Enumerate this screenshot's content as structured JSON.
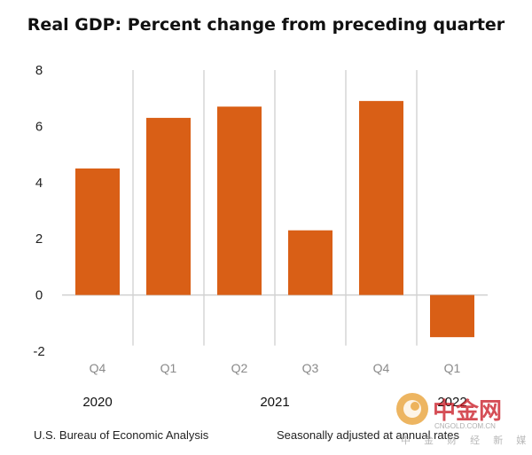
{
  "chart_data": {
    "type": "bar",
    "title": "Real GDP:  Percent change from preceding quarter",
    "categories": [
      "Q4",
      "Q1",
      "Q2",
      "Q3",
      "Q4",
      "Q1"
    ],
    "values": [
      4.5,
      6.3,
      6.7,
      2.3,
      6.9,
      -1.5
    ],
    "year_groups": [
      {
        "label": "2020",
        "start": 0,
        "end": 0
      },
      {
        "label": "2021",
        "start": 1,
        "end": 4
      },
      {
        "label": "2022",
        "start": 5,
        "end": 5
      }
    ],
    "ylim": [
      -2,
      8
    ],
    "yticks": [
      "-2",
      "0",
      "2",
      "4",
      "6",
      "8"
    ],
    "xlabel": "",
    "ylabel": "",
    "grid": false,
    "bar_color": "#d95f16",
    "separator_color": "#d6d6d6"
  },
  "footer": {
    "source": "U.S. Bureau of Economic Analysis",
    "note": "Seasonally adjusted at annual rates"
  },
  "watermark": {
    "brand": "中金网",
    "url": "CNGOLD.COM.CN",
    "tagline": "中 金 财 经 新 媒 体",
    "color": "#c8141e"
  }
}
